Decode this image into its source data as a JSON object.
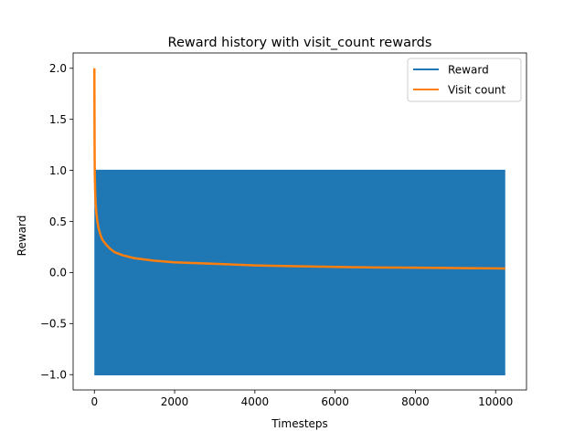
{
  "chart_data": {
    "type": "line",
    "title": "Reward history with visit_count rewards",
    "xlabel": "Timesteps",
    "ylabel": "Reward",
    "xlim": [
      -530,
      10770
    ],
    "ylim": [
      -1.15,
      2.15
    ],
    "x_ticks": [
      0,
      2000,
      4000,
      6000,
      8000,
      10000
    ],
    "x_tick_labels": [
      "0",
      "2000",
      "4000",
      "6000",
      "8000",
      "10000"
    ],
    "y_ticks": [
      -1.0,
      -0.5,
      0.0,
      0.5,
      1.0,
      1.5,
      2.0
    ],
    "y_tick_labels": [
      "−1.0",
      "−0.5",
      "0.0",
      "0.5",
      "1.0",
      "1.5",
      "2.0"
    ],
    "grid": false,
    "legend_position": "top-right",
    "series": [
      {
        "name": "Reward",
        "color": "#1f77b4",
        "description_values": "rapidly alternating between -1 and 1",
        "x": [
          0,
          10240
        ],
        "min": -1.0,
        "max": 1.0
      },
      {
        "name": "Visit count",
        "color": "#ff7f0e",
        "x": [
          0,
          5,
          10,
          20,
          30,
          50,
          75,
          100,
          150,
          200,
          300,
          400,
          500,
          700,
          1000,
          1500,
          2000,
          3000,
          4000,
          5000,
          6000,
          7000,
          8000,
          9000,
          10000,
          10240
        ],
        "values": [
          2.0,
          1.25,
          0.95,
          0.78,
          0.68,
          0.58,
          0.5,
          0.44,
          0.37,
          0.32,
          0.27,
          0.23,
          0.2,
          0.17,
          0.14,
          0.115,
          0.1,
          0.085,
          0.07,
          0.062,
          0.055,
          0.05,
          0.047,
          0.044,
          0.041,
          0.04
        ]
      }
    ]
  }
}
